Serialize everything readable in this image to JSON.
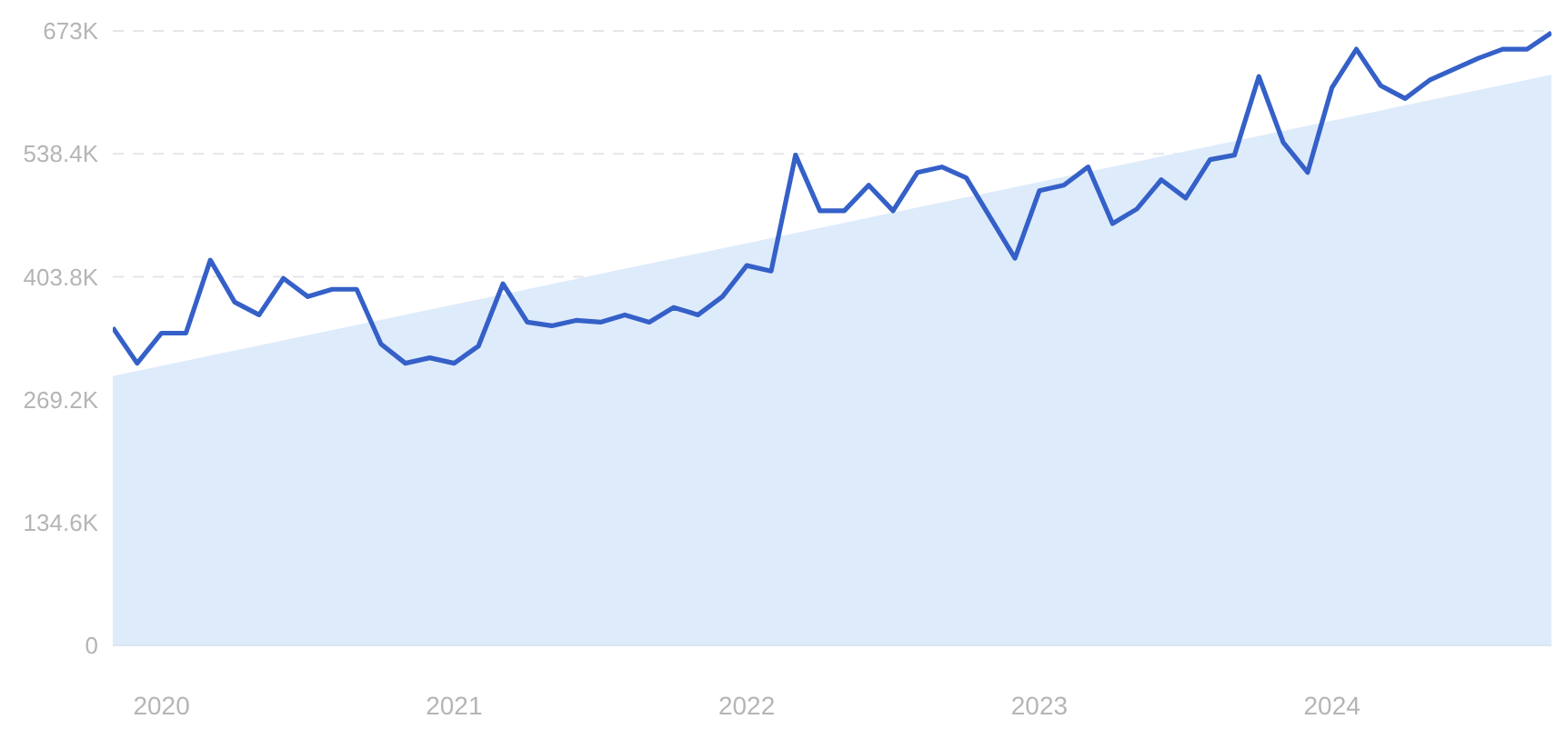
{
  "chart_data": {
    "type": "line",
    "xlim": [
      "2019-11",
      "2024-10"
    ],
    "xticks": [
      "2020",
      "2021",
      "2022",
      "2023",
      "2024"
    ],
    "ylim": [
      0,
      673000
    ],
    "yticks": [
      0,
      {
        "value": 134600,
        "label": "134.6K"
      },
      {
        "value": 269200,
        "label": "269.2K"
      },
      {
        "value": 403800,
        "label": "403.8K"
      },
      {
        "value": 538400,
        "label": "538.4K"
      },
      {
        "value": 673000,
        "label": "673K"
      }
    ],
    "grid": "y",
    "marker": "none",
    "line_style": "solid",
    "legend": false,
    "x": [
      "2019-11",
      "2019-12",
      "2020-01",
      "2020-02",
      "2020-03",
      "2020-04",
      "2020-05",
      "2020-06",
      "2020-07",
      "2020-08",
      "2020-09",
      "2020-10",
      "2020-11",
      "2020-12",
      "2021-01",
      "2021-02",
      "2021-03",
      "2021-04",
      "2021-05",
      "2021-06",
      "2021-07",
      "2021-08",
      "2021-09",
      "2021-10",
      "2021-11",
      "2021-12",
      "2022-01",
      "2022-02",
      "2022-03",
      "2022-04",
      "2022-05",
      "2022-06",
      "2022-07",
      "2022-08",
      "2022-09",
      "2022-10",
      "2022-11",
      "2022-12",
      "2023-01",
      "2023-02",
      "2023-03",
      "2023-04",
      "2023-05",
      "2023-06",
      "2023-07",
      "2023-08",
      "2023-09",
      "2023-10",
      "2023-11",
      "2023-12",
      "2024-01",
      "2024-02",
      "2024-03",
      "2024-04",
      "2024-05",
      "2024-06",
      "2024-07",
      "2024-08",
      "2024-09",
      "2024-10"
    ],
    "series": [
      {
        "type": "area",
        "color": "#deebfb",
        "x": [
          "2019-11",
          "2024-10"
        ],
        "values": [
          295000,
          625000
        ]
      },
      {
        "color": "#3560c8",
        "values": [
          348000,
          309000,
          342000,
          342000,
          422000,
          376000,
          362000,
          402000,
          382000,
          390000,
          390000,
          330000,
          309000,
          315000,
          309000,
          328000,
          396000,
          354000,
          350000,
          356000,
          354000,
          362000,
          354000,
          370000,
          362000,
          382000,
          416000,
          410000,
          537000,
          476000,
          476000,
          504000,
          476000,
          518000,
          524000,
          512000,
          468000,
          424000,
          498000,
          504000,
          524000,
          462000,
          478000,
          510000,
          490000,
          532000,
          537000,
          623000,
          551000,
          518000,
          611000,
          653000,
          613000,
          599000,
          619000,
          631000,
          643000,
          653000,
          653000,
          671000
        ]
      }
    ]
  }
}
